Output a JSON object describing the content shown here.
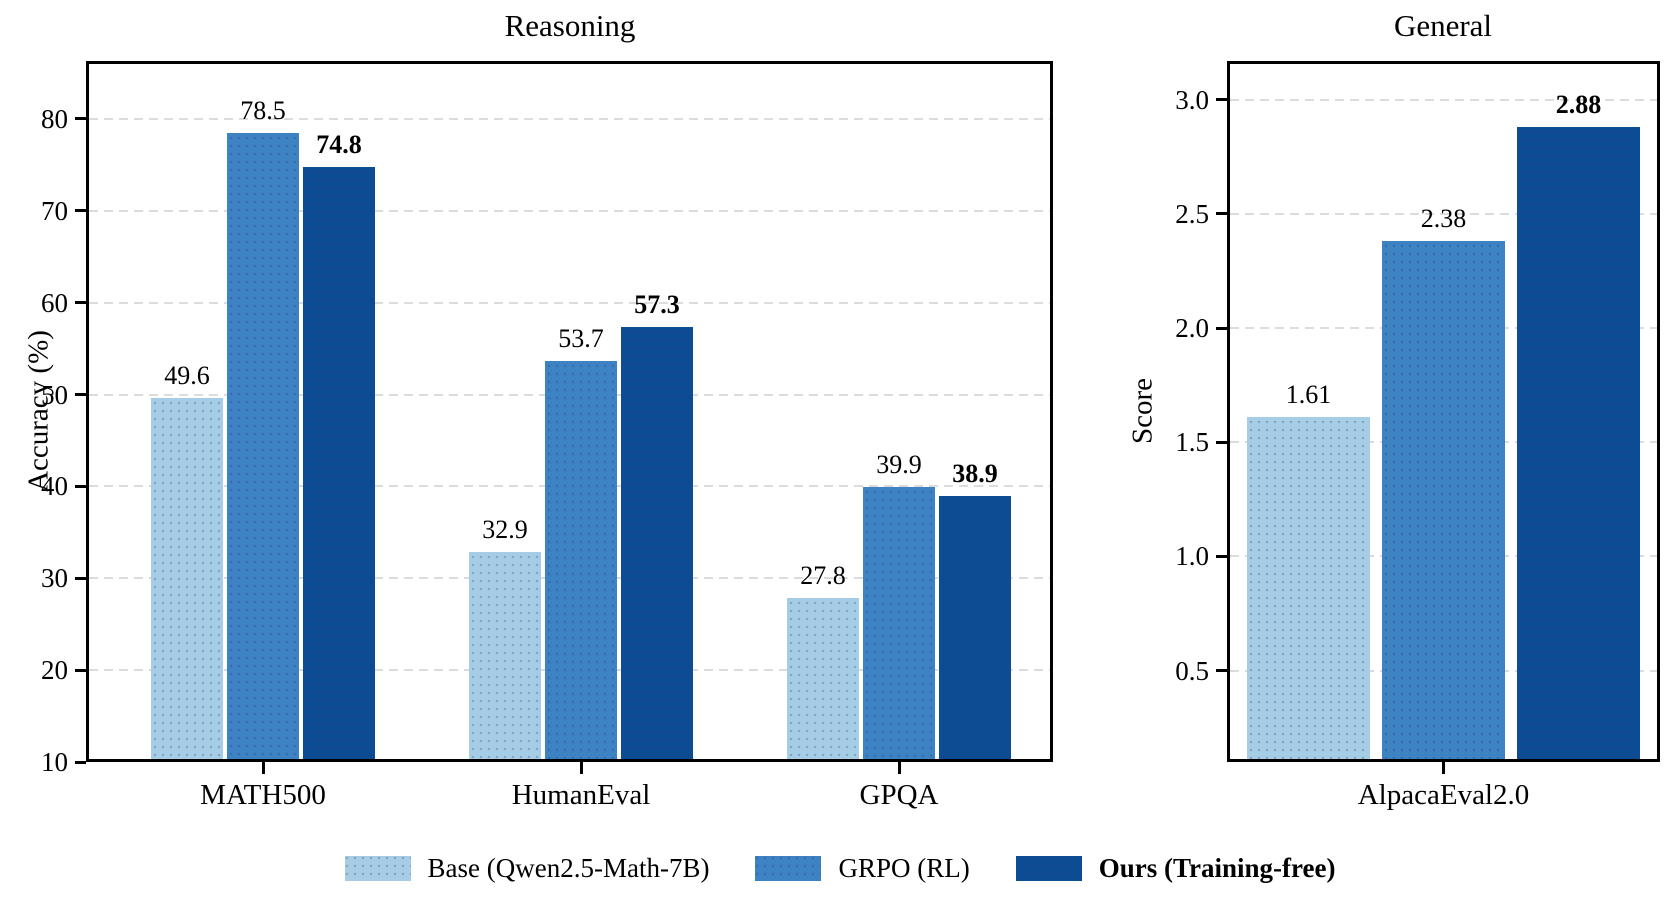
{
  "colors": {
    "series": [
      "#a5cde5",
      "#3d83c3",
      "#0c4c94"
    ],
    "grid": "#dcdcdc",
    "axis": "#000000",
    "background": "#ffffff"
  },
  "legend": {
    "items": [
      {
        "label": "Base (Qwen2.5-Math-7B)",
        "series_index": 0,
        "bold": false
      },
      {
        "label": "GRPO (RL)",
        "series_index": 1,
        "bold": false
      },
      {
        "label": "Ours (Training-free)",
        "series_index": 2,
        "bold": true
      }
    ]
  },
  "chart_data": [
    {
      "type": "bar",
      "title": "Reasoning",
      "xlabel": "",
      "ylabel": "Accuracy (%)",
      "categories": [
        "MATH500",
        "HumanEval",
        "GPQA"
      ],
      "series": [
        {
          "name": "Base (Qwen2.5-Math-7B)",
          "values": [
            49.6,
            32.9,
            27.8
          ],
          "labels": [
            "49.6",
            "32.9",
            "27.8"
          ],
          "bold_labels": false
        },
        {
          "name": "GRPO (RL)",
          "values": [
            78.5,
            53.7,
            39.9
          ],
          "labels": [
            "78.5",
            "53.7",
            "39.9"
          ],
          "bold_labels": false
        },
        {
          "name": "Ours (Training-free)",
          "values": [
            74.8,
            57.3,
            38.9
          ],
          "labels": [
            "74.8",
            "57.3",
            "38.9"
          ],
          "bold_labels": true
        }
      ],
      "ylim": [
        10,
        86.3
      ],
      "yticks": [
        10,
        20,
        30,
        40,
        50,
        60,
        70,
        80
      ],
      "ytick_labels": [
        "10",
        "20",
        "30",
        "40",
        "50",
        "60",
        "70",
        "80"
      ],
      "grid": true,
      "legend_position": "below-figure"
    },
    {
      "type": "bar",
      "title": "General",
      "xlabel": "",
      "ylabel": "Score",
      "categories": [
        "AlpacaEval2.0"
      ],
      "series": [
        {
          "name": "Base (Qwen2.5-Math-7B)",
          "values": [
            1.61
          ],
          "labels": [
            "1.61"
          ],
          "bold_labels": false
        },
        {
          "name": "GRPO (RL)",
          "values": [
            2.38
          ],
          "labels": [
            "2.38"
          ],
          "bold_labels": false
        },
        {
          "name": "Ours (Training-free)",
          "values": [
            2.88
          ],
          "labels": [
            "2.88"
          ],
          "bold_labels": true
        }
      ],
      "ylim": [
        0.1,
        3.17
      ],
      "yticks": [
        0.5,
        1.0,
        1.5,
        2.0,
        2.5,
        3.0
      ],
      "ytick_labels": [
        "0.5",
        "1.0",
        "1.5",
        "2.0",
        "2.5",
        "3.0"
      ],
      "grid": true,
      "legend_position": "below-figure"
    }
  ]
}
